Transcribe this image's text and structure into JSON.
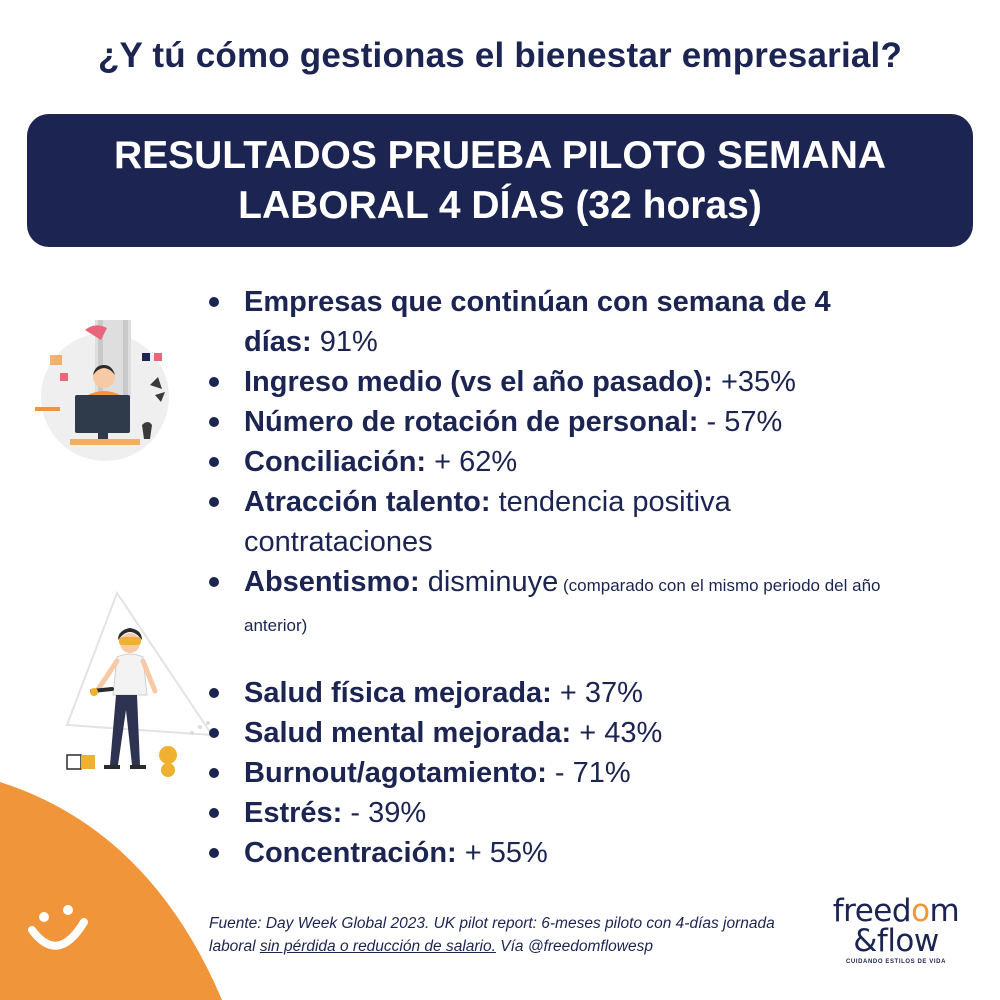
{
  "header": {
    "title": "¿Y tú cómo gestionas el bienestar empresarial?"
  },
  "banner": {
    "line1": "RESULTADOS PRUEBA PILOTO SEMANA",
    "line2": "LABORAL 4 DÍAS (32 horas)"
  },
  "list1": [
    {
      "label": "Empresas que continúan con semana de 4 días:",
      "value": " 91%"
    },
    {
      "label": "Ingreso medio (vs el año pasado):",
      "value": " +35%"
    },
    {
      "label": "Número de rotación de personal:",
      "value": " - 57%"
    },
    {
      "label": "Conciliación:",
      "value": " + 62%"
    },
    {
      "label": "Atracción talento:",
      "value": " tendencia positiva contrataciones"
    },
    {
      "label": "Absentismo:",
      "value": " disminuye",
      "note": " (comparado con el mismo periodo del año anterior)"
    }
  ],
  "list2": [
    {
      "label": "Salud física mejorada:",
      "value": " + 37%"
    },
    {
      "label": "Salud mental mejorada:",
      "value": " + 43%"
    },
    {
      "label": "Burnout/agotamiento:",
      "value": " - 71%"
    },
    {
      "label": "Estrés:",
      "value": " - 39%"
    },
    {
      "label": "Concentración:",
      "value": " + 55%"
    }
  ],
  "source": {
    "prefix": "Fuente: Day Week Global 2023. UK pilot report: 6-meses piloto con 4-días jornada laboral ",
    "underlined": "sin pérdida o reducción de salario.",
    "suffix": " Vía @freedomflowesp"
  },
  "brand": {
    "line1_a": "freed",
    "line1_o": "o",
    "line1_b": "m",
    "line2": "&flow",
    "tagline": "CUIDANDO ESTILOS DE VIDA"
  },
  "colors": {
    "navy": "#1c2452",
    "orange": "#f0953a",
    "white": "#ffffff"
  },
  "icons": [
    "smiley-icon",
    "office-worker-illustration",
    "vr-woman-illustration"
  ]
}
